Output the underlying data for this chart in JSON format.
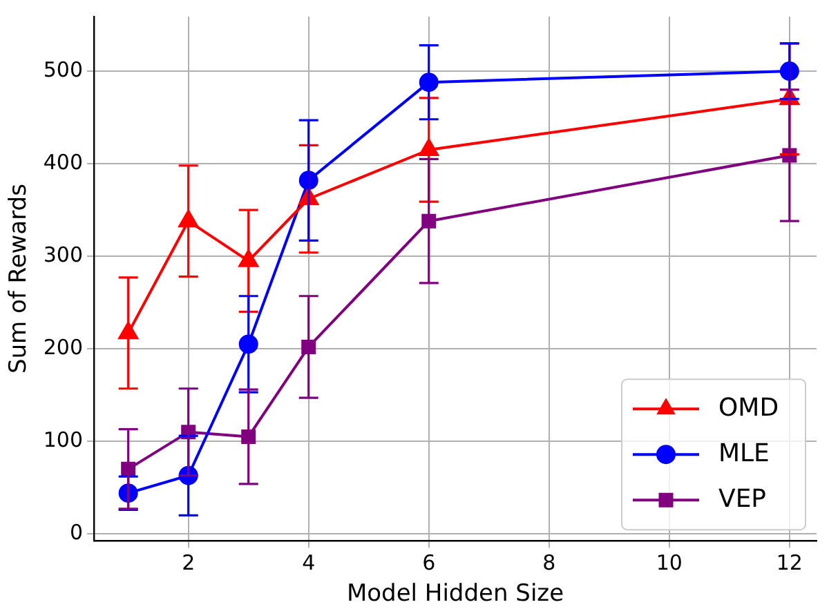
{
  "chart_data": {
    "type": "line",
    "xlabel": "Model Hidden Size",
    "ylabel": "Sum of Rewards",
    "x": [
      1,
      2,
      3,
      4,
      6,
      12
    ],
    "xlim": [
      0.43,
      12.45
    ],
    "ylim": [
      -7.5,
      559
    ],
    "xticks": [
      2,
      4,
      6,
      8,
      10,
      12
    ],
    "yticks": [
      0,
      100,
      200,
      300,
      400,
      500
    ],
    "grid": true,
    "legend": "bottom right",
    "line_style": "solid",
    "series": [
      {
        "name": "OMD",
        "color": "#ff0000",
        "marker": "triangle",
        "values": [
          217,
          338,
          295,
          362,
          415,
          470
        ],
        "errors": [
          60,
          60,
          55,
          58,
          56,
          60
        ]
      },
      {
        "name": "MLE",
        "color": "#0000ff",
        "marker": "circle",
        "values": [
          44,
          63,
          205,
          382,
          488,
          500
        ],
        "errors": [
          18,
          43,
          52,
          65,
          40,
          30
        ]
      },
      {
        "name": "VEP",
        "color": "#800080",
        "marker": "square",
        "values": [
          70,
          110,
          105,
          202,
          338,
          409
        ],
        "errors": [
          43,
          47,
          51,
          55,
          67,
          71
        ]
      }
    ]
  }
}
